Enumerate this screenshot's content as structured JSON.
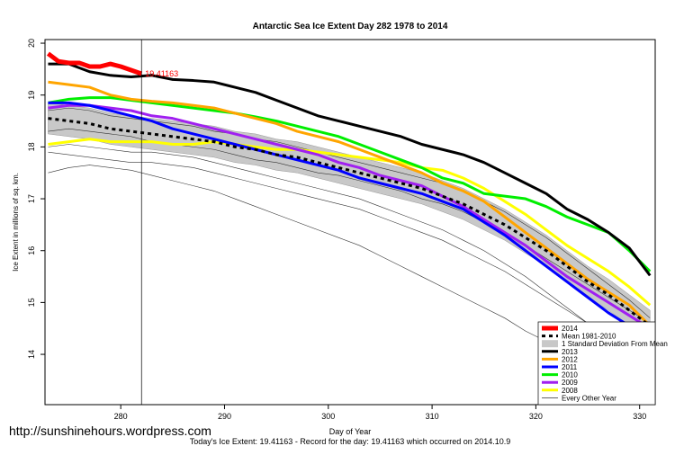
{
  "chart_data": {
    "type": "line",
    "title": "Antarctic Sea Ice Extent Day 282 1978 to 2014",
    "x_label": "Day of Year",
    "y_label": "Ice Extent in millions of sq. km.",
    "footer": "Today's Ice Extent: 19.41163  -  Record for the day: 19.41163 which occurred on 2014.10.9",
    "watermark": "http://sunshinehours.wordpress.com",
    "xlim": [
      272.7,
      331.5
    ],
    "ylim": [
      13.03,
      20.07
    ],
    "xticks": [
      280,
      290,
      300,
      310,
      320,
      330
    ],
    "yticks": [
      14,
      15,
      16,
      17,
      18,
      19,
      20
    ],
    "today": 282,
    "x": [
      273,
      275,
      277,
      279,
      281,
      283,
      285,
      287,
      289,
      291,
      293,
      295,
      297,
      299,
      301,
      303,
      305,
      307,
      309,
      311,
      313,
      315,
      317,
      319,
      321,
      323,
      325,
      327,
      329,
      331
    ],
    "band": {
      "name": "1 Standard Deviation From Mean",
      "color": "#c8c8c8",
      "low": [
        18.25,
        18.2,
        18.15,
        18.05,
        18.0,
        17.95,
        17.9,
        17.85,
        17.8,
        17.7,
        17.65,
        17.55,
        17.5,
        17.4,
        17.3,
        17.2,
        17.1,
        17.0,
        16.9,
        16.75,
        16.6,
        16.4,
        16.2,
        15.95,
        15.7,
        15.4,
        15.1,
        14.85,
        14.55,
        14.25
      ],
      "high": [
        18.85,
        18.8,
        18.75,
        18.65,
        18.6,
        18.55,
        18.5,
        18.45,
        18.4,
        18.3,
        18.25,
        18.15,
        18.1,
        18.0,
        17.9,
        17.8,
        17.7,
        17.6,
        17.5,
        17.35,
        17.2,
        17.0,
        16.8,
        16.55,
        16.3,
        16.0,
        15.7,
        15.45,
        15.15,
        14.85
      ]
    },
    "others": {
      "name": "Every Other Year",
      "color": "#333333",
      "lines": [
        [
          17.5,
          17.6,
          17.65,
          17.6,
          17.55,
          17.45,
          17.35,
          17.25,
          17.15,
          17.0,
          16.85,
          16.7,
          16.55,
          16.4,
          16.25,
          16.1,
          15.9,
          15.7,
          15.5,
          15.3,
          15.1,
          14.9,
          14.7,
          14.45,
          14.25,
          14.05,
          13.85,
          13.65,
          13.45,
          13.3
        ],
        [
          17.9,
          17.85,
          17.8,
          17.75,
          17.7,
          17.7,
          17.65,
          17.6,
          17.5,
          17.4,
          17.3,
          17.2,
          17.1,
          17.0,
          16.9,
          16.8,
          16.65,
          16.5,
          16.35,
          16.2,
          16.0,
          15.8,
          15.6,
          15.35,
          15.1,
          14.85,
          14.6,
          14.35,
          14.1,
          13.85
        ],
        [
          18.3,
          18.35,
          18.3,
          18.25,
          18.2,
          18.1,
          18.05,
          18.0,
          17.95,
          17.85,
          17.75,
          17.7,
          17.6,
          17.5,
          17.45,
          17.35,
          17.25,
          17.15,
          17.0,
          16.9,
          16.75,
          16.55,
          16.35,
          16.1,
          15.85,
          15.6,
          15.35,
          15.1,
          14.85,
          14.6
        ],
        [
          18.7,
          18.75,
          18.7,
          18.6,
          18.55,
          18.5,
          18.45,
          18.4,
          18.3,
          18.25,
          18.15,
          18.1,
          18.0,
          17.9,
          17.8,
          17.7,
          17.6,
          17.5,
          17.4,
          17.3,
          17.15,
          16.95,
          16.75,
          16.5,
          16.25,
          15.95,
          15.65,
          15.35,
          15.05,
          14.7
        ],
        [
          18.0,
          18.05,
          18.0,
          17.95,
          17.9,
          17.9,
          17.85,
          17.8,
          17.7,
          17.6,
          17.5,
          17.4,
          17.3,
          17.2,
          17.1,
          17.0,
          16.85,
          16.7,
          16.55,
          16.4,
          16.2,
          16.0,
          15.75,
          15.5,
          15.2,
          14.9,
          14.6,
          14.3,
          14.0,
          13.7
        ]
      ]
    },
    "series": [
      {
        "name": "2014",
        "color": "#ff0000",
        "width": 5,
        "x": [
          273,
          274,
          275,
          276,
          277,
          278,
          279,
          280,
          281,
          282
        ],
        "values": [
          19.8,
          19.65,
          19.62,
          19.62,
          19.55,
          19.55,
          19.6,
          19.55,
          19.48,
          19.41163
        ]
      },
      {
        "name": "Mean 1981-2010",
        "color": "#000000",
        "width": 3,
        "dash": "4,4",
        "values": [
          18.55,
          18.5,
          18.45,
          18.35,
          18.3,
          18.25,
          18.2,
          18.15,
          18.1,
          18.0,
          17.95,
          17.85,
          17.8,
          17.7,
          17.6,
          17.5,
          17.4,
          17.3,
          17.2,
          17.05,
          16.9,
          16.7,
          16.5,
          16.25,
          16.0,
          15.7,
          15.4,
          15.15,
          14.85,
          14.55
        ]
      },
      {
        "name": "2013",
        "color": "#000000",
        "width": 3,
        "values": [
          19.6,
          19.6,
          19.45,
          19.38,
          19.35,
          19.38,
          19.3,
          19.28,
          19.25,
          19.15,
          19.05,
          18.9,
          18.75,
          18.6,
          18.5,
          18.4,
          18.3,
          18.2,
          18.05,
          17.95,
          17.85,
          17.7,
          17.5,
          17.3,
          17.1,
          16.8,
          16.6,
          16.35,
          16.05,
          15.52
        ]
      },
      {
        "name": "2012",
        "color": "#ffa500",
        "width": 3,
        "values": [
          19.25,
          19.2,
          19.15,
          19.0,
          18.92,
          18.88,
          18.85,
          18.8,
          18.75,
          18.65,
          18.55,
          18.45,
          18.3,
          18.2,
          18.1,
          17.95,
          17.8,
          17.65,
          17.5,
          17.3,
          17.15,
          16.95,
          16.65,
          16.35,
          16.05,
          15.75,
          15.45,
          15.2,
          14.95,
          14.55
        ]
      },
      {
        "name": "2011",
        "color": "#0000ff",
        "width": 3,
        "values": [
          18.85,
          18.85,
          18.8,
          18.7,
          18.6,
          18.5,
          18.35,
          18.25,
          18.15,
          18.05,
          17.95,
          17.85,
          17.75,
          17.65,
          17.55,
          17.4,
          17.3,
          17.2,
          17.1,
          16.95,
          16.8,
          16.55,
          16.3,
          16.0,
          15.7,
          15.4,
          15.1,
          14.8,
          14.55,
          14.35
        ]
      },
      {
        "name": "2010",
        "color": "#00ee00",
        "width": 3,
        "values": [
          18.85,
          18.92,
          18.95,
          18.95,
          18.9,
          18.85,
          18.8,
          18.75,
          18.7,
          18.65,
          18.58,
          18.5,
          18.4,
          18.3,
          18.2,
          18.05,
          17.9,
          17.75,
          17.6,
          17.4,
          17.3,
          17.1,
          17.05,
          17.0,
          16.85,
          16.65,
          16.5,
          16.35,
          16.0,
          15.6
        ]
      },
      {
        "name": "2009",
        "color": "#a020f0",
        "width": 3,
        "values": [
          18.75,
          18.8,
          18.8,
          18.75,
          18.7,
          18.6,
          18.55,
          18.45,
          18.35,
          18.25,
          18.15,
          18.05,
          17.95,
          17.85,
          17.7,
          17.6,
          17.45,
          17.35,
          17.25,
          17.05,
          16.85,
          16.6,
          16.35,
          16.1,
          15.8,
          15.5,
          15.25,
          15.0,
          14.75,
          14.5
        ]
      },
      {
        "name": "2008",
        "color": "#ffff00",
        "width": 3,
        "values": [
          18.05,
          18.1,
          18.15,
          18.1,
          18.1,
          18.1,
          18.05,
          18.05,
          18.1,
          18.05,
          18.0,
          17.95,
          17.95,
          17.9,
          17.85,
          17.8,
          17.75,
          17.7,
          17.6,
          17.55,
          17.4,
          17.2,
          16.95,
          16.7,
          16.4,
          16.1,
          15.85,
          15.6,
          15.3,
          14.95
        ]
      }
    ]
  }
}
